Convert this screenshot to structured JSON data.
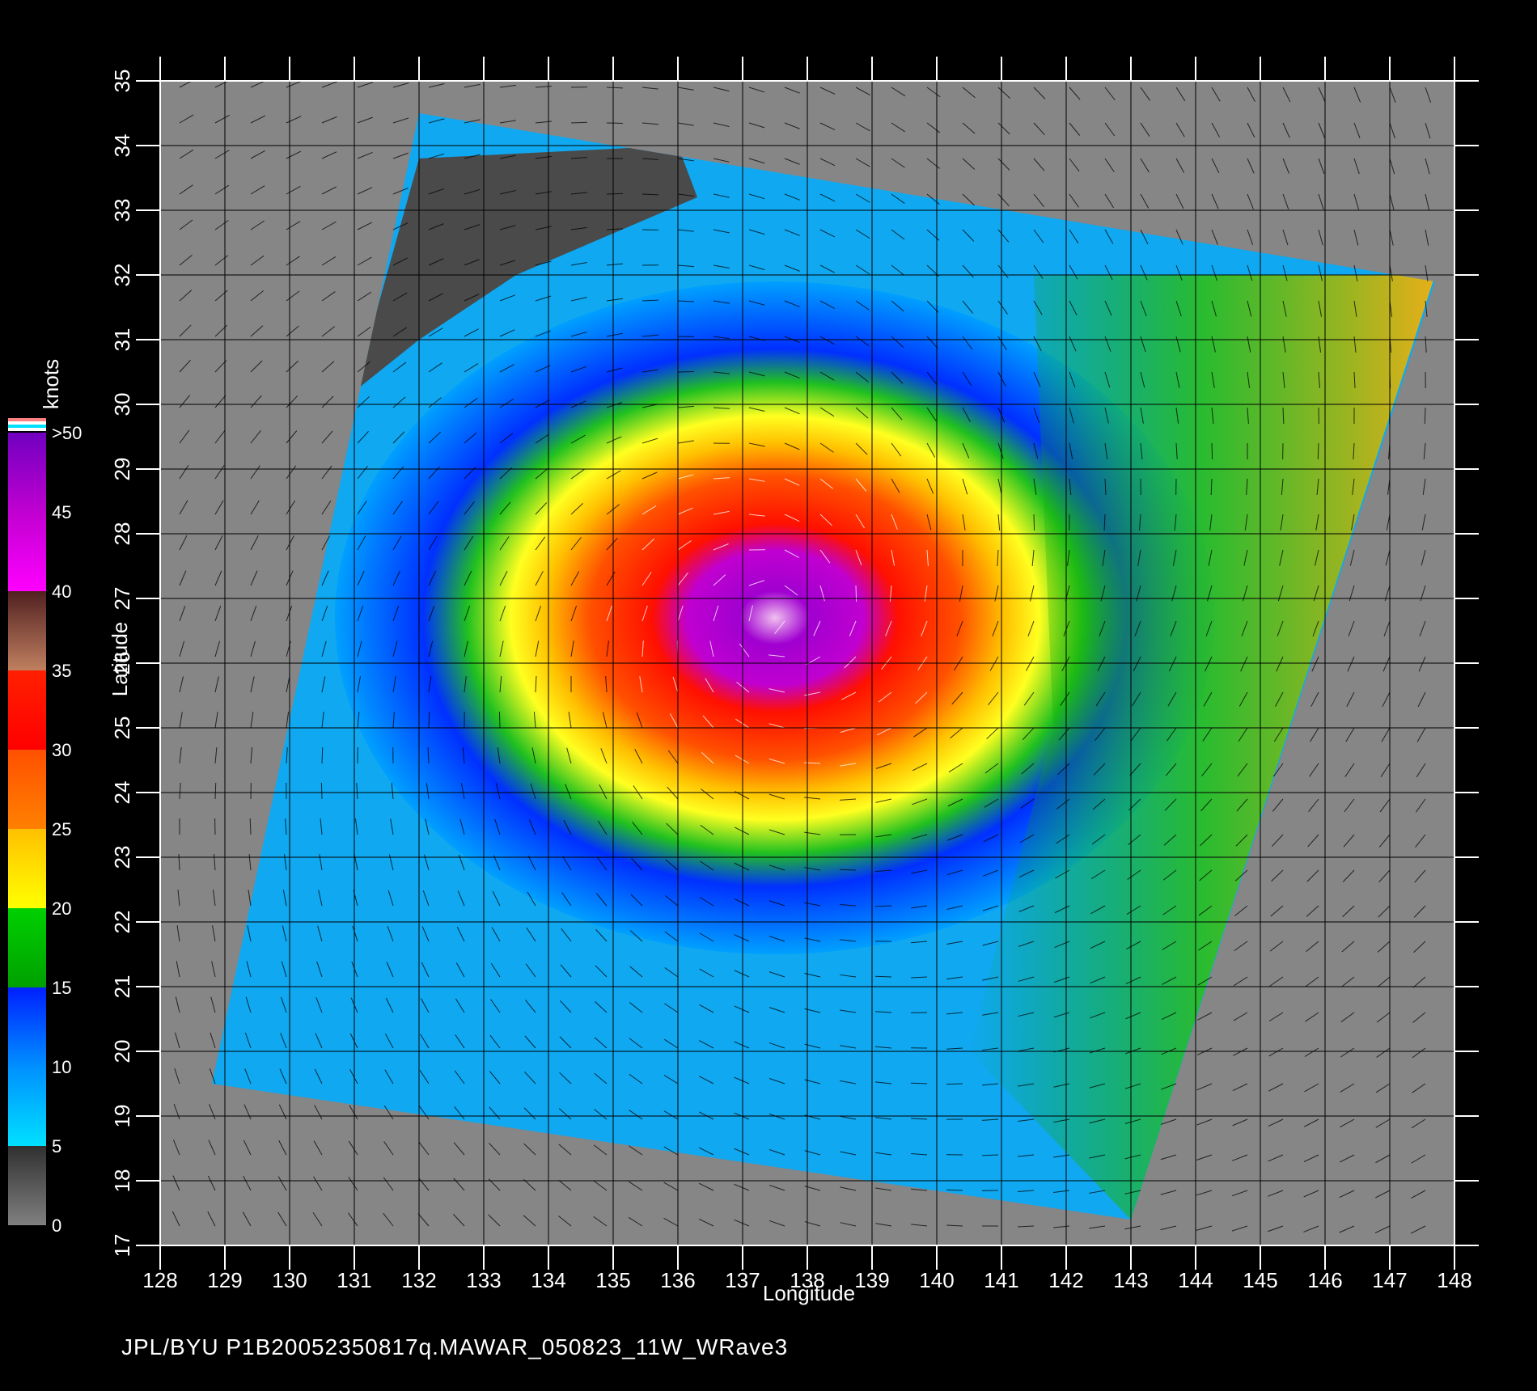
{
  "map": {
    "x_axis": {
      "label": "Longitude",
      "ticks": [
        "128",
        "129",
        "130",
        "131",
        "132",
        "133",
        "134",
        "135",
        "136",
        "137",
        "138",
        "139",
        "140",
        "141",
        "142",
        "143",
        "144",
        "145",
        "146",
        "147",
        "148"
      ],
      "min": 128,
      "max": 148
    },
    "y_axis": {
      "label": "Latitude",
      "ticks": [
        "17",
        "18",
        "19",
        "20",
        "21",
        "22",
        "23",
        "24",
        "25",
        "26",
        "27",
        "28",
        "29",
        "30",
        "31",
        "32",
        "33",
        "34",
        "35"
      ],
      "min": 17,
      "max": 35
    },
    "swath_corners_lonlat": [
      [
        132,
        34.5
      ],
      [
        147.7,
        31.9
      ],
      [
        143,
        17.4
      ],
      [
        128.8,
        19.5
      ]
    ],
    "storm_center_lonlat": [
      137.5,
      26.7
    ],
    "land_lonlat": [
      [
        132,
        33.8
      ],
      [
        136,
        34
      ],
      [
        136.3,
        33.2
      ],
      [
        133.5,
        32
      ],
      [
        132,
        31
      ],
      [
        131,
        30.2
      ]
    ],
    "background_color": "#868686"
  },
  "colorbar": {
    "unit": "knots",
    "labels": [
      ">50",
      "45",
      "40",
      "35",
      "30",
      "25",
      "20",
      "15",
      "10",
      "5",
      "0"
    ],
    "stops": [
      {
        "value": 0,
        "color": "#808080"
      },
      {
        "value": 5,
        "color": "#303030"
      },
      {
        "value": 5,
        "color": "#00e0ff"
      },
      {
        "value": 10,
        "color": "#0090ff"
      },
      {
        "value": 15,
        "color": "#0020ff"
      },
      {
        "value": 15,
        "color": "#00a000"
      },
      {
        "value": 20,
        "color": "#00d000"
      },
      {
        "value": 20,
        "color": "#ffff00"
      },
      {
        "value": 25,
        "color": "#ffc000"
      },
      {
        "value": 25,
        "color": "#ff8000"
      },
      {
        "value": 30,
        "color": "#ff5000"
      },
      {
        "value": 30,
        "color": "#ff0000"
      },
      {
        "value": 35,
        "color": "#ff2000"
      },
      {
        "value": 35,
        "color": "#c08060"
      },
      {
        "value": 40,
        "color": "#502020"
      },
      {
        "value": 40,
        "color": "#ff00ff"
      },
      {
        "value": 45,
        "color": "#c000d0"
      },
      {
        "value": 50,
        "color": "#7000c0"
      }
    ]
  },
  "footer": "JPL/BYU  P1B20052350817q.MAWAR_050823_11W_WRave3"
}
